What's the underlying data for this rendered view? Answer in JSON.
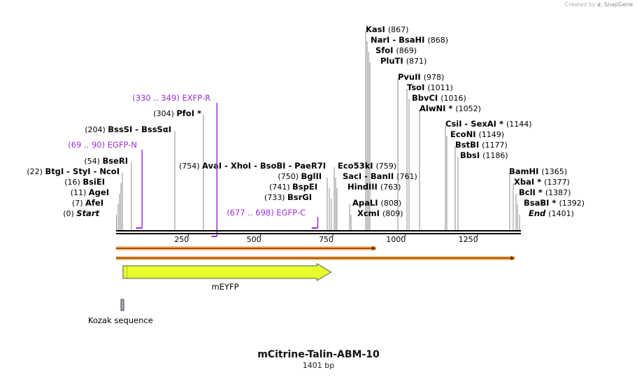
{
  "credit": {
    "prefix": "Created by",
    "brand": "SnapGene"
  },
  "title": "mCitrine-Talin-ABM-10",
  "length_label": "1401 bp",
  "sequence_length": 1401,
  "ruler": {
    "ticks": [
      "250",
      "500",
      "750",
      "1000",
      "1250"
    ]
  },
  "colors": {
    "primer": "#9b30d9",
    "feature": "#e8ff2e",
    "kozak": "#a8a8b8",
    "orf": "#ffbf70",
    "backbone": "#000000"
  },
  "sites": [
    {
      "name": "Start",
      "num": "(0)",
      "side": "left",
      "italic": true
    },
    {
      "name": "AfeI",
      "num": "(7)",
      "side": "left"
    },
    {
      "name": "AgeI",
      "num": "(11)",
      "side": "left"
    },
    {
      "name": "BsiEI",
      "num": "(16)",
      "side": "left"
    },
    {
      "pre": "(22)",
      "name": "BtgI",
      "rest": " - StyI  - NcoI",
      "side": "left"
    },
    {
      "name": "BseRI",
      "num": "(54)",
      "side": "left"
    },
    {
      "name": "BssSI  - BssSαI",
      "num": "(204)",
      "side": "left"
    },
    {
      "name": "PfoI *",
      "num": "(304)",
      "side": "left"
    },
    {
      "pre": "(754)",
      "name": "AvaI",
      "rest": "  - XhoI  - BsoBI  - PaeR7I",
      "side": "left"
    },
    {
      "name": "BglII",
      "num": "(750)",
      "side": "left"
    },
    {
      "name": "BspEI",
      "num": "(741)",
      "side": "left"
    },
    {
      "name": "BsrGI",
      "num": "(733)",
      "side": "left"
    },
    {
      "name": "Eco53kI",
      "num": "(759)",
      "side": "right"
    },
    {
      "name": "SacI  - BanII",
      "num": "(761)",
      "side": "right"
    },
    {
      "name": "HindIII",
      "num": "(763)",
      "side": "right"
    },
    {
      "name": "ApaLI",
      "num": "(808)",
      "side": "right"
    },
    {
      "name": "XcmI",
      "num": "(809)",
      "side": "right"
    },
    {
      "name": "KasI",
      "num": "(867)",
      "side": "right"
    },
    {
      "name": "NarI  - BsaHI",
      "num": "(868)",
      "side": "right"
    },
    {
      "name": "SfoI",
      "num": "(869)",
      "side": "right"
    },
    {
      "name": "PluTI",
      "num": "(871)",
      "side": "right"
    },
    {
      "name": "PvuII",
      "num": "(978)",
      "side": "right"
    },
    {
      "name": "TsoI",
      "num": "(1011)",
      "side": "right"
    },
    {
      "name": "BbvCI",
      "num": "(1016)",
      "side": "right"
    },
    {
      "name": "AlwNI *",
      "num": "(1052)",
      "side": "right"
    },
    {
      "name": "CsiI  - SexAI *",
      "num": "(1144)",
      "side": "right"
    },
    {
      "name": "EcoNI",
      "num": "(1149)",
      "side": "right"
    },
    {
      "name": "BstBI",
      "num": "(1177)",
      "side": "right"
    },
    {
      "name": "BbsI",
      "num": "(1186)",
      "side": "right"
    },
    {
      "name": "BamHI",
      "num": "(1365)",
      "side": "right"
    },
    {
      "name": "XbaI *",
      "num": "(1377)",
      "side": "right"
    },
    {
      "name": "BclI *",
      "num": "(1387)",
      "side": "right"
    },
    {
      "name": "BsaBI *",
      "num": "(1392)",
      "side": "right"
    },
    {
      "name": "End",
      "num": "(1401)",
      "side": "right",
      "italic": true
    }
  ],
  "primers": [
    {
      "range": "(69 .. 90)",
      "name": "EGFP-N",
      "strand": "fwd",
      "start": 69,
      "end": 90
    },
    {
      "range": "(330 .. 349)",
      "name": "EXFP-R",
      "strand": "rev",
      "start": 330,
      "end": 349
    },
    {
      "range": "(677 .. 698)",
      "name": "EGFP-C",
      "strand": "fwd",
      "start": 677,
      "end": 698
    }
  ],
  "orfs": [
    {
      "start": 0,
      "end": 900
    },
    {
      "start": 0,
      "end": 1380
    }
  ],
  "features": [
    {
      "name": "mEYFP",
      "start": 24,
      "end": 744
    },
    {
      "name": "Kozak sequence",
      "start": 16,
      "end": 25
    }
  ]
}
